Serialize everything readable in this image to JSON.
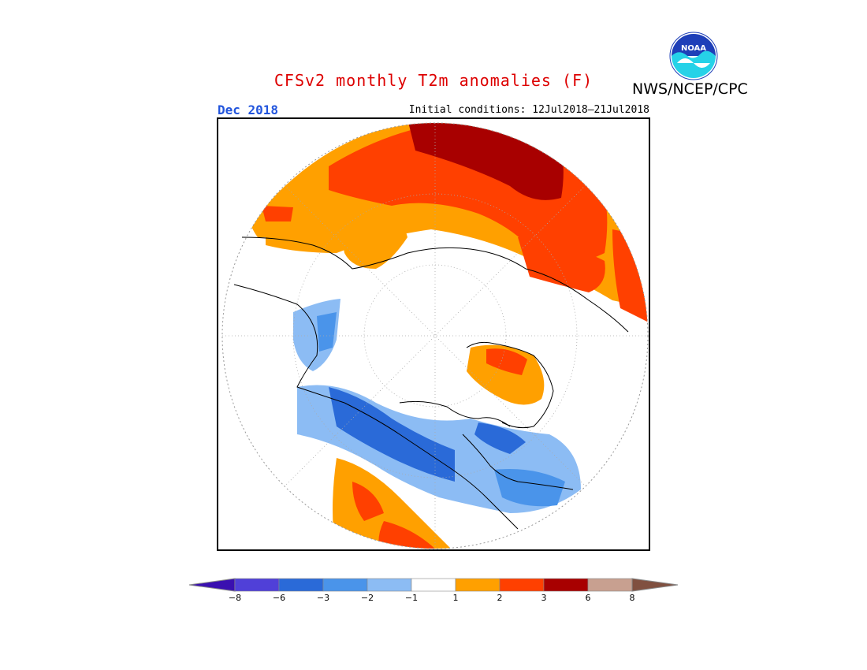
{
  "header": {
    "title": "CFSv2 monthly T2m anomalies (F)",
    "agency": "NWS/NCEP/CPC",
    "month": "Dec 2018",
    "initial_conditions": "Initial conditions: 12Jul2018–21Jul2018"
  },
  "colors": {
    "title": "#dd0000",
    "month": "#2255dd",
    "noaa_blue": "#1e3fb8",
    "noaa_cyan": "#26d2e8"
  },
  "logo": {
    "text": "NOAA"
  },
  "legend": {
    "ticks": [
      "−8",
      "−6",
      "−3",
      "−2",
      "−1",
      "1",
      "2",
      "3",
      "6",
      "8"
    ],
    "bins": [
      {
        "color": "#3a10b0"
      },
      {
        "color": "#5040d8"
      },
      {
        "color": "#2a6ad8"
      },
      {
        "color": "#4a94ea"
      },
      {
        "color": "#8cbcf4"
      },
      {
        "color": "#ffffff"
      },
      {
        "color": "#ffa000"
      },
      {
        "color": "#ff4000"
      },
      {
        "color": "#a80000"
      },
      {
        "color": "#c8a090"
      },
      {
        "color": "#805040"
      }
    ]
  }
}
